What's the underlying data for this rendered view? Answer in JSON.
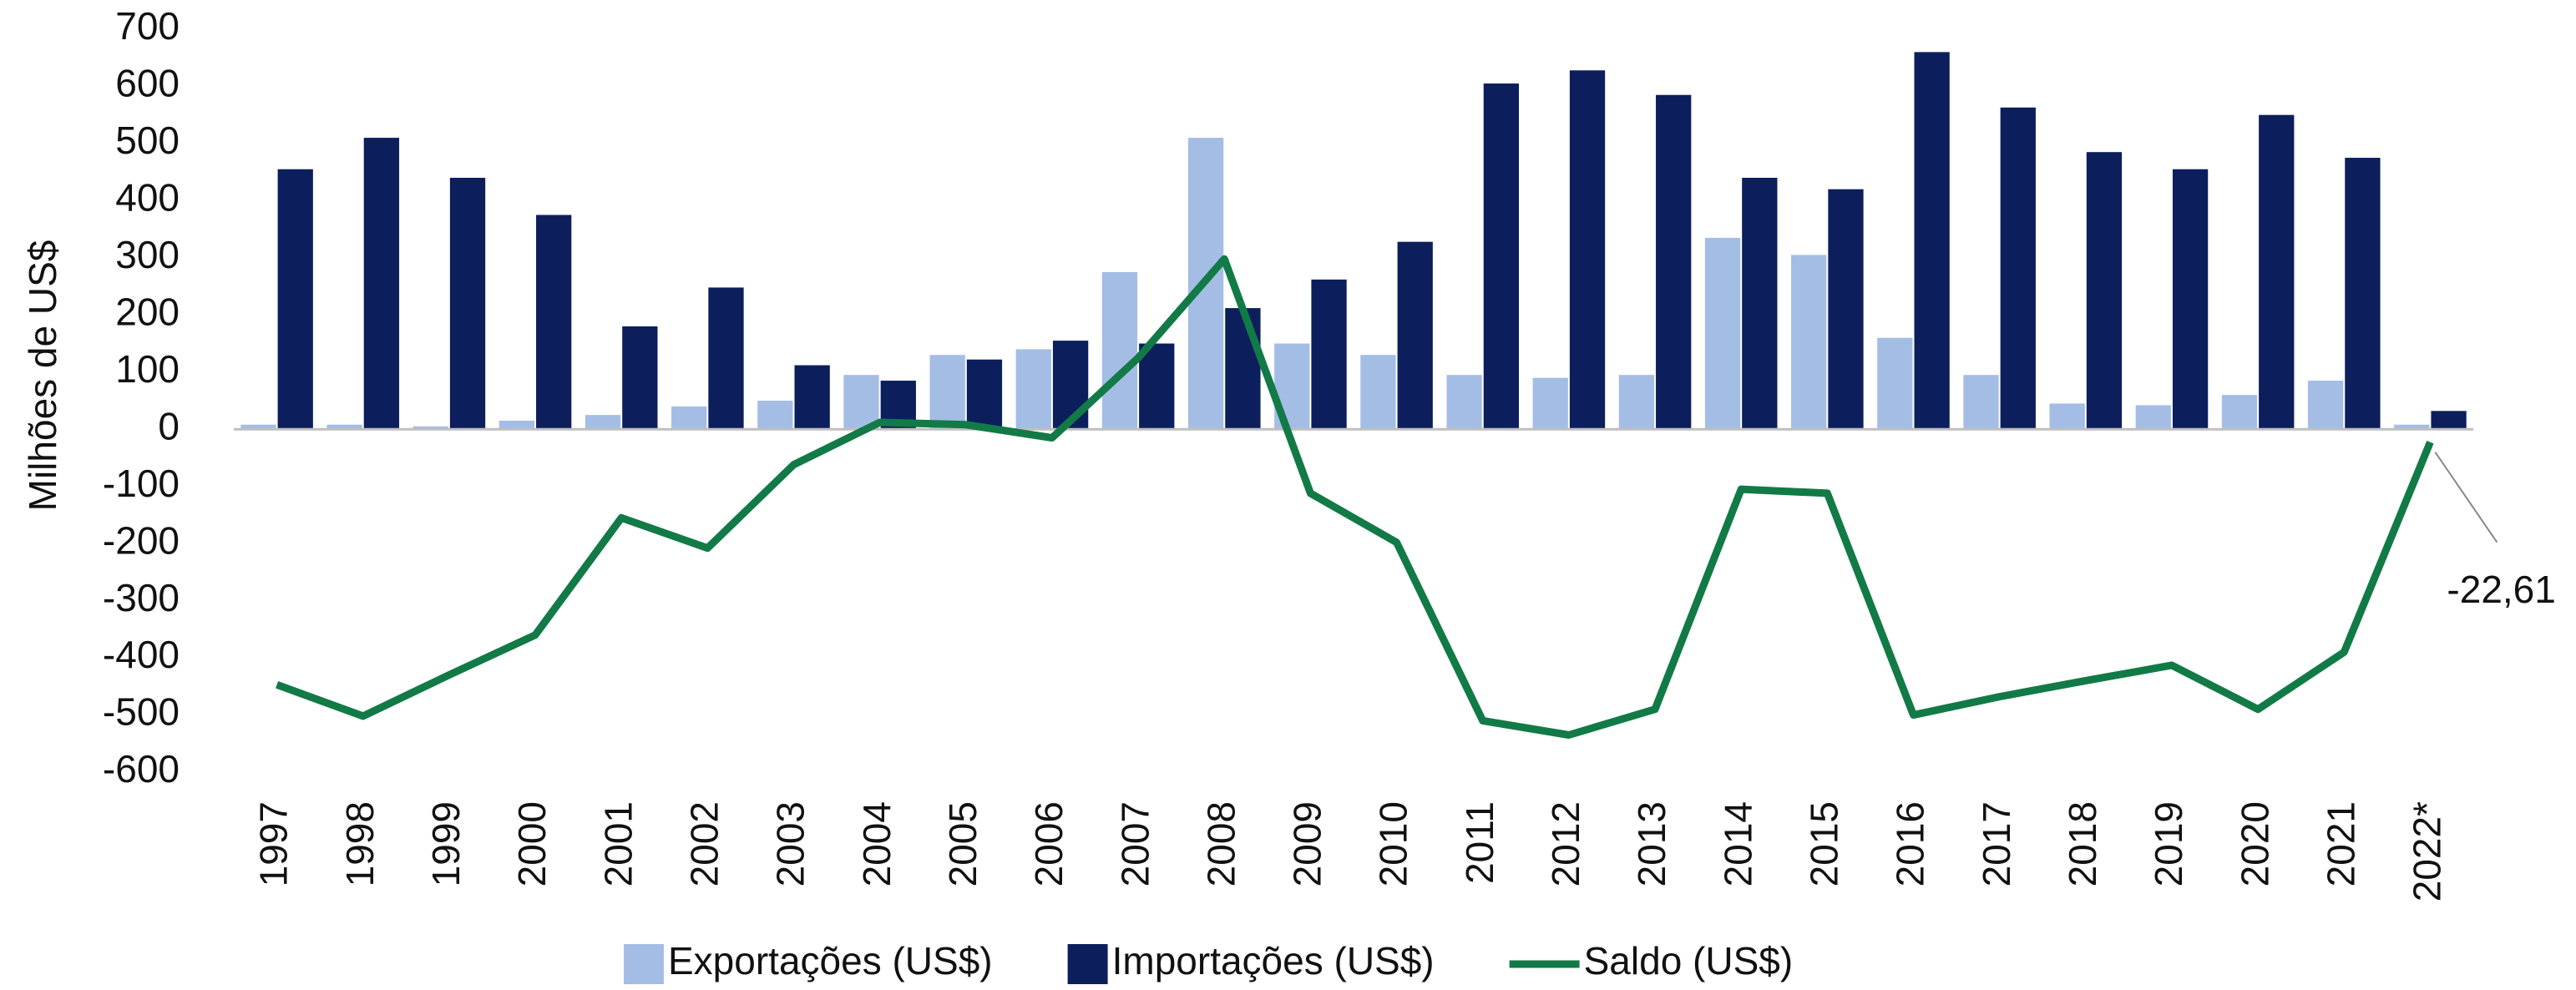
{
  "chart_data": {
    "type": "bar_line",
    "y_label": "Milhões de US$",
    "categories": [
      "1997",
      "1998",
      "1999",
      "2000",
      "2001",
      "2002",
      "2003",
      "2004",
      "2005",
      "2006",
      "2007",
      "2008",
      "2009",
      "2010",
      "2011",
      "2012",
      "2013",
      "2014",
      "2015",
      "2016",
      "2017",
      "2018",
      "2019",
      "2020",
      "2021",
      "2022*"
    ],
    "series": [
      {
        "name": "Exportações (US$)",
        "type": "bar",
        "color": "#a4bde5",
        "values": [
          8,
          8,
          5,
          15,
          25,
          40,
          50,
          95,
          130,
          140,
          275,
          510,
          150,
          130,
          95,
          90,
          95,
          335,
          305,
          160,
          95,
          45,
          42,
          60,
          85,
          8
        ]
      },
      {
        "name": "Importações (US$)",
        "type": "bar",
        "color": "#0c1f5c",
        "values": [
          455,
          510,
          440,
          375,
          180,
          248,
          112,
          85,
          122,
          155,
          150,
          212,
          262,
          328,
          605,
          628,
          585,
          440,
          420,
          660,
          563,
          485,
          455,
          550,
          475,
          32
        ]
      },
      {
        "name": "Saldo (US$)",
        "type": "line",
        "color": "#127a46",
        "values": [
          -447,
          -502,
          -430,
          -360,
          -155,
          -208,
          -62,
          12,
          8,
          -15,
          125,
          298,
          -112,
          -198,
          -510,
          -535,
          -490,
          -105,
          -112,
          -500,
          -468,
          -440,
          -413,
          -490,
          -390,
          -22.61
        ],
        "value_labels": [
          null,
          null,
          null,
          null,
          null,
          null,
          null,
          null,
          null,
          null,
          null,
          null,
          null,
          null,
          null,
          null,
          null,
          null,
          null,
          null,
          null,
          null,
          null,
          null,
          null,
          "-22,61"
        ]
      }
    ],
    "ylim": [
      -600,
      700
    ],
    "yticks": [
      -600,
      -500,
      -400,
      -300,
      -200,
      -100,
      0,
      100,
      200,
      300,
      400,
      500,
      600,
      700
    ],
    "grid": false,
    "legend": "bottom"
  }
}
